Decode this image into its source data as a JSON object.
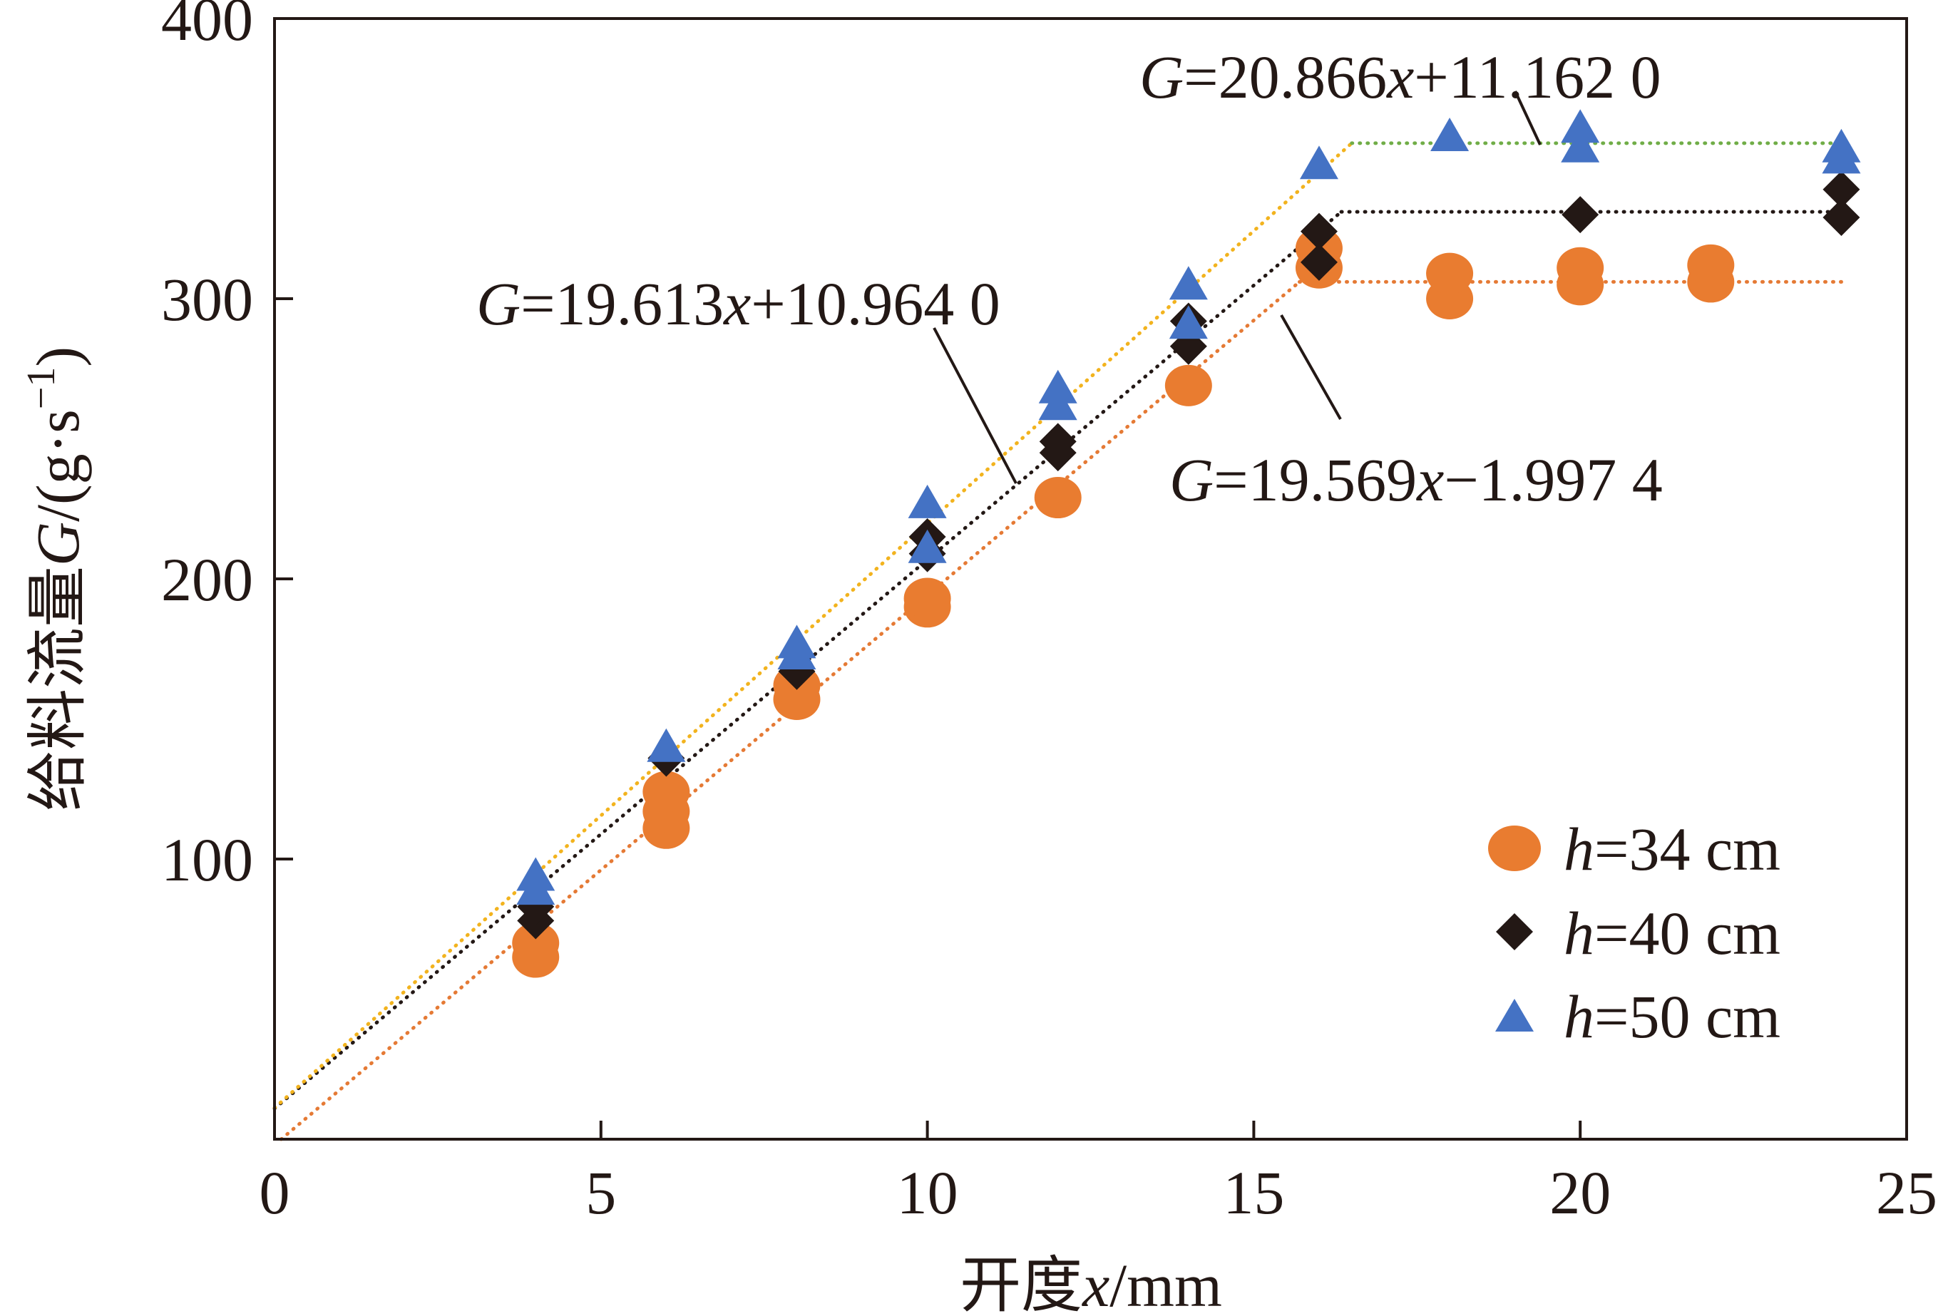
{
  "chart_data": {
    "type": "scatter",
    "xlabel": {
      "prefix": "开度",
      "var": "x",
      "suffix": "/mm"
    },
    "ylabel": {
      "prefix": "给料流量",
      "var": "G",
      "suffix": "/(g·s",
      "sup": "−1",
      "close": ")"
    },
    "xlim": [
      0,
      25
    ],
    "ylim": [
      0,
      400
    ],
    "xticks": [
      0,
      5,
      10,
      15,
      20,
      25
    ],
    "yticks": [
      100,
      200,
      300,
      400
    ],
    "grid": false,
    "legend_position": "bottom-right",
    "series": [
      {
        "name": {
          "var": "h",
          "rest": "=34 cm"
        },
        "marker": "circle",
        "color": "#e97c30",
        "points": [
          [
            4,
            65
          ],
          [
            4,
            70
          ],
          [
            6,
            111
          ],
          [
            6,
            117
          ],
          [
            6,
            124
          ],
          [
            8,
            157
          ],
          [
            8,
            162
          ],
          [
            10,
            190
          ],
          [
            10,
            193
          ],
          [
            12,
            229
          ],
          [
            14,
            269
          ],
          [
            16,
            311
          ],
          [
            16,
            318
          ],
          [
            18,
            300
          ],
          [
            18,
            309
          ],
          [
            20,
            305
          ],
          [
            20,
            311
          ],
          [
            22,
            306
          ],
          [
            22,
            312
          ]
        ],
        "fit": {
          "slope": 19.569,
          "intercept": -1.9974,
          "x_end": 15.7,
          "plateau": 306,
          "plateau_end": 24
        },
        "fit_color": "#e57a35"
      },
      {
        "name": {
          "var": "h",
          "rest": "=40 cm"
        },
        "marker": "diamond",
        "color": "#231815",
        "points": [
          [
            4,
            78
          ],
          [
            4,
            83
          ],
          [
            6,
            136
          ],
          [
            8,
            167
          ],
          [
            10,
            209
          ],
          [
            10,
            215
          ],
          [
            12,
            245
          ],
          [
            12,
            249
          ],
          [
            14,
            283
          ],
          [
            14,
            292
          ],
          [
            16,
            313
          ],
          [
            16,
            324
          ],
          [
            20,
            330
          ],
          [
            24,
            329
          ],
          [
            24,
            339
          ]
        ],
        "fit": {
          "slope": 19.613,
          "intercept": 10.964,
          "x_end": 16.34,
          "plateau": 331,
          "plateau_end": 24
        },
        "fit_color": "#231815"
      },
      {
        "name": {
          "var": "h",
          "rest": "=50 cm"
        },
        "marker": "triangle",
        "color": "#4472c4",
        "points": [
          [
            4,
            88
          ],
          [
            4,
            93
          ],
          [
            6,
            139
          ],
          [
            8,
            172
          ],
          [
            8,
            176
          ],
          [
            10,
            210
          ],
          [
            10,
            226
          ],
          [
            12,
            261
          ],
          [
            12,
            267
          ],
          [
            14,
            290
          ],
          [
            14,
            304
          ],
          [
            16,
            347
          ],
          [
            18,
            357
          ],
          [
            20,
            353
          ],
          [
            20,
            360
          ],
          [
            24,
            349
          ],
          [
            24,
            353
          ]
        ],
        "fit": {
          "slope": 20.866,
          "intercept": 11.162,
          "x_end": 16.5,
          "plateau": 355.5,
          "plateau_end": 24
        },
        "fit_color_rising": "#f2b31e",
        "fit_color_plateau": "#70ad47"
      }
    ],
    "annotations": [
      {
        "var": "G",
        "rest_a": "=20.866",
        "var2": "x",
        "rest_b": "+11.162 0"
      },
      {
        "var": "G",
        "rest_a": "=19.613",
        "var2": "x",
        "rest_b": "+10.964 0"
      },
      {
        "var": "G",
        "rest_a": "=19.569",
        "var2": "x",
        "rest_b": "−1.997 4"
      }
    ]
  }
}
